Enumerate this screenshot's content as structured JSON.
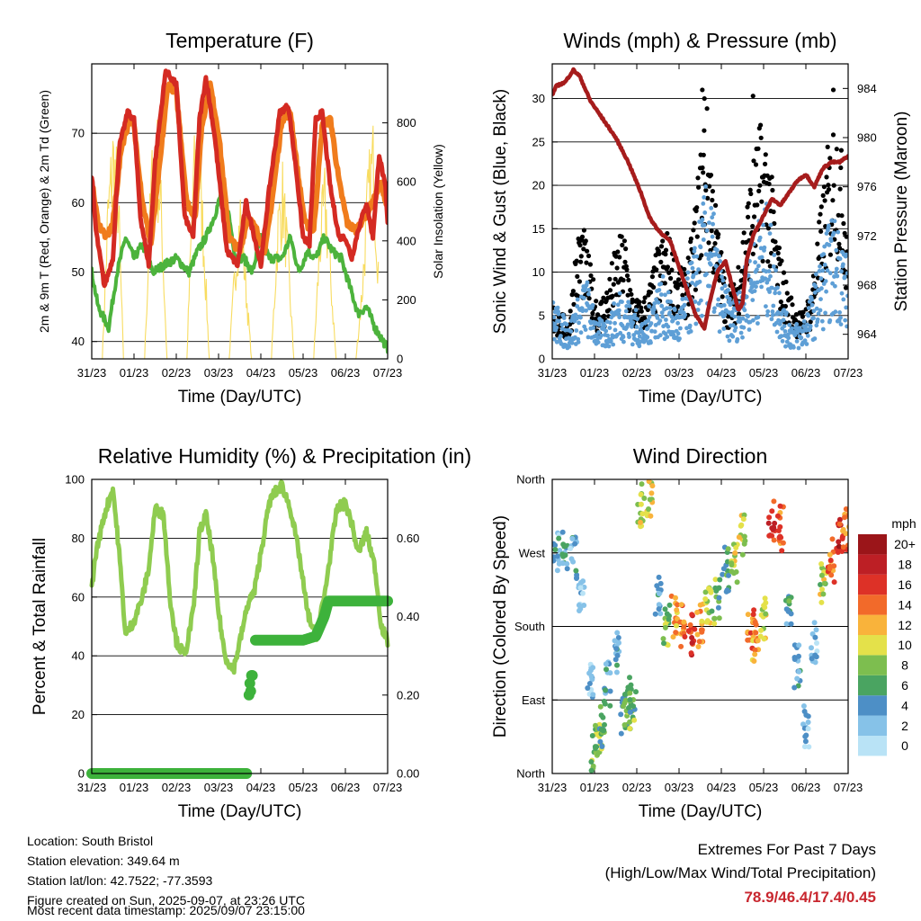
{
  "colors": {
    "temp_2m": "#d42a22",
    "temp_9m": "#f07c1c",
    "dewpoint": "#4cb33c",
    "insolation": "#f8dc60",
    "wind": "#5e9fd6",
    "gust": "#000000",
    "pressure": "#a61c1c",
    "rh": "#8fcc50",
    "precip": "#3db23b",
    "speed_scale": [
      "#b9e3f6",
      "#86c2e8",
      "#4d8fc6",
      "#4aa461",
      "#7dbe4f",
      "#e4e14a",
      "#f9b33b",
      "#f26a2a",
      "#dd3127",
      "#bd1f25",
      "#9b1519"
    ]
  },
  "xticks": [
    "31/23",
    "01/23",
    "02/23",
    "03/23",
    "04/23",
    "05/23",
    "06/23",
    "07/23"
  ],
  "panels": [
    {
      "id": "temperature",
      "title": "Temperature (F)",
      "xlabel": "Time (Day/UTC)",
      "ylabel_left": "2m & 9m T (Red, Orange) & 2m Td (Green)",
      "ylabel_right": "Solar Insolation (Yellow)",
      "left_ticks": [
        "40",
        "50",
        "60",
        "70"
      ],
      "right_ticks": [
        "0",
        "200",
        "400",
        "600",
        "800"
      ]
    },
    {
      "id": "winds",
      "title": "Winds (mph) & Pressure (mb)",
      "xlabel": "Time (Day/UTC)",
      "ylabel_left": "Sonic Wind & Gust (Blue, Black)",
      "ylabel_right": "Station Pressure (Maroon)",
      "left_ticks": [
        "0",
        "5",
        "10",
        "15",
        "20",
        "25",
        "30"
      ],
      "right_ticks": [
        "964",
        "968",
        "972",
        "976",
        "980",
        "984"
      ]
    },
    {
      "id": "humidity",
      "title": "Relative Humidity (%) & Precipitation (in)",
      "xlabel": "Time (Day/UTC)",
      "ylabel_left": "Percent & Total Rainfall",
      "ylabel_right": "",
      "left_ticks": [
        "0",
        "20",
        "40",
        "60",
        "80",
        "100"
      ],
      "right_ticks": [
        "0.00",
        "0.20",
        "0.40",
        "0.60"
      ]
    },
    {
      "id": "direction",
      "title": "Wind Direction",
      "xlabel": "Time (Day/UTC)",
      "ylabel_left": "Direction (Colored By Speed)",
      "ylabel_right": "",
      "left_ticks": [
        "North",
        "East",
        "South",
        "West",
        "North"
      ],
      "right_ticks": []
    }
  ],
  "legend": {
    "title": "mph",
    "labels": [
      "0",
      "2",
      "4",
      "6",
      "8",
      "10",
      "12",
      "14",
      "16",
      "18",
      "20+"
    ]
  },
  "footer": {
    "location": "Location: South Bristol",
    "elevation": "Station elevation: 349.64 m",
    "latlon": "Station lat/lon: 42.7522; -77.3593",
    "created": "Figure created on Sun, 2025-09-07, at 23:26 UTC",
    "recent": "Most recent data timestamp: 2025/09/07 23:15:00"
  },
  "extremes": {
    "title": "Extremes For Past 7 Days",
    "subtitle": "(High/Low/Max Wind/Total Precipitation)",
    "values": "78.9/46.4/17.4/0.45"
  },
  "chart_data": [
    {
      "type": "line",
      "title": "Temperature (F)",
      "x_range_days": [
        0,
        7
      ],
      "ylim": [
        37.5,
        80
      ],
      "y2lim": [
        0,
        1000
      ],
      "series": [
        {
          "name": "2m T (Red)",
          "axis": "left",
          "x": [
            0,
            0.1,
            0.3,
            0.5,
            0.65,
            0.85,
            1.0,
            1.15,
            1.35,
            1.5,
            1.75,
            2.0,
            2.2,
            2.4,
            2.55,
            2.7,
            2.9,
            3.2,
            3.45,
            3.65,
            3.85,
            4.0,
            4.2,
            4.45,
            4.65,
            4.85,
            5.0,
            5.15,
            5.3,
            5.45,
            5.65,
            5.85,
            6.0,
            6.15,
            6.3,
            6.5,
            6.65,
            6.8,
            6.95,
            7.0
          ],
          "y": [
            64,
            56,
            48,
            52,
            68,
            73,
            72,
            58,
            51,
            66,
            79,
            77,
            58,
            55,
            72,
            78,
            70,
            53,
            51,
            60,
            55,
            51,
            62,
            73,
            74,
            64,
            55,
            54,
            72,
            73,
            62,
            55,
            55,
            52,
            56,
            60,
            55,
            67,
            62,
            57
          ]
        },
        {
          "name": "9m T (Orange)",
          "axis": "left",
          "x": [
            0,
            0.15,
            0.35,
            0.5,
            0.7,
            0.9,
            1.0,
            1.2,
            1.4,
            1.6,
            1.8,
            2.0,
            2.25,
            2.45,
            2.6,
            2.8,
            3.0,
            3.25,
            3.5,
            3.7,
            3.9,
            4.1,
            4.3,
            4.5,
            4.7,
            4.9,
            5.05,
            5.25,
            5.45,
            5.65,
            5.85,
            6.05,
            6.25,
            6.45,
            6.65,
            6.85,
            7.0
          ],
          "y": [
            63,
            57,
            55,
            57,
            68,
            72,
            71,
            60,
            54,
            65,
            77,
            76,
            60,
            58,
            71,
            77,
            70,
            55,
            53,
            58,
            56,
            53,
            62,
            72,
            73,
            63,
            57,
            56,
            71,
            72,
            63,
            57,
            56,
            58,
            60,
            63,
            59
          ]
        },
        {
          "name": "2m Td (Green)",
          "axis": "left",
          "x": [
            0,
            0.15,
            0.4,
            0.6,
            0.8,
            1.0,
            1.2,
            1.45,
            1.7,
            2.0,
            2.3,
            2.5,
            2.7,
            2.9,
            3.1,
            3.25,
            3.4,
            3.6,
            3.8,
            4.0,
            4.2,
            4.5,
            4.7,
            4.9,
            5.1,
            5.3,
            5.5,
            5.7,
            5.9,
            6.1,
            6.3,
            6.5,
            6.7,
            6.9,
            7.0
          ],
          "y": [
            50,
            45,
            42,
            50,
            55,
            52,
            54,
            50,
            51,
            52,
            50,
            53,
            55,
            58,
            62,
            58,
            52,
            52,
            50,
            55,
            52,
            52,
            55,
            50,
            53,
            52,
            55,
            53,
            52,
            48,
            44,
            45,
            42,
            40,
            39
          ]
        },
        {
          "name": "Solar Insolation (Yellow)",
          "axis": "right",
          "x": [
            0.25,
            0.38,
            0.5,
            0.62,
            0.75,
            1.25,
            1.4,
            1.52,
            1.65,
            1.78,
            2.25,
            2.4,
            2.52,
            2.65,
            2.78,
            3.25,
            3.4,
            3.52,
            3.65,
            3.78,
            4.25,
            4.4,
            4.52,
            4.65,
            4.78,
            5.25,
            5.4,
            5.52,
            5.65,
            5.78,
            6.25,
            6.4,
            6.52,
            6.65,
            6.78,
            6.88
          ],
          "y": [
            0,
            600,
            850,
            700,
            0,
            0,
            700,
            920,
            600,
            0,
            0,
            750,
            880,
            500,
            0,
            0,
            400,
            620,
            300,
            0,
            0,
            550,
            700,
            400,
            0,
            0,
            500,
            680,
            350,
            0,
            0,
            300,
            650,
            850,
            400,
            0
          ]
        }
      ]
    },
    {
      "type": "line",
      "title": "Winds (mph) & Pressure (mb)",
      "x_range_days": [
        0,
        7
      ],
      "ylim": [
        0,
        34
      ],
      "y2lim": [
        962,
        986
      ],
      "series": [
        {
          "name": "Sonic Wind (Blue)",
          "axis": "left",
          "x": [
            0,
            0.2,
            0.4,
            0.6,
            0.8,
            1.0,
            1.2,
            1.4,
            1.6,
            1.8,
            2.0,
            2.2,
            2.4,
            2.6,
            2.8,
            3.0,
            3.2,
            3.4,
            3.6,
            3.7,
            3.9,
            4.1,
            4.3,
            4.5,
            4.7,
            4.9,
            5.1,
            5.3,
            5.5,
            5.7,
            5.9,
            6.1,
            6.3,
            6.5,
            6.7,
            6.9,
            7.0
          ],
          "y": [
            5,
            4,
            3,
            5,
            7,
            4,
            3,
            4,
            6,
            5,
            4,
            3,
            6,
            7,
            5,
            4,
            7,
            10,
            14,
            15,
            10,
            6,
            5,
            7,
            9,
            12,
            13,
            8,
            4,
            3,
            3,
            5,
            8,
            11,
            12,
            10,
            8
          ]
        },
        {
          "name": "Gust (Black)",
          "axis": "left",
          "x": [
            0,
            0.2,
            0.4,
            0.55,
            0.7,
            0.9,
            1.1,
            1.3,
            1.5,
            1.7,
            1.9,
            2.1,
            2.3,
            2.5,
            2.7,
            2.9,
            3.1,
            3.3,
            3.5,
            3.6,
            3.7,
            3.9,
            4.1,
            4.3,
            4.5,
            4.7,
            4.9,
            5.1,
            5.3,
            5.5,
            5.7,
            5.9,
            6.1,
            6.3,
            6.5,
            6.7,
            6.9,
            7.0
          ],
          "y": [
            6,
            5,
            4,
            12,
            15,
            10,
            6,
            8,
            12,
            14,
            7,
            6,
            8,
            12,
            14,
            11,
            9,
            13,
            22,
            28,
            26,
            15,
            8,
            8,
            14,
            20,
            25,
            24,
            14,
            9,
            6,
            5,
            7,
            14,
            22,
            27,
            20,
            15
          ]
        },
        {
          "name": "Station Pressure (Maroon)",
          "axis": "right",
          "x": [
            0,
            0.1,
            0.3,
            0.5,
            0.65,
            0.9,
            1.2,
            1.5,
            1.8,
            2.1,
            2.3,
            2.5,
            2.8,
            3.0,
            3.2,
            3.4,
            3.6,
            3.75,
            3.9,
            4.1,
            4.25,
            4.4,
            4.5,
            4.6,
            4.75,
            4.9,
            5.05,
            5.2,
            5.4,
            5.6,
            5.8,
            6.0,
            6.2,
            6.4,
            6.6,
            6.8,
            7.0
          ],
          "y": [
            983.5,
            984.2,
            984.5,
            985.5,
            985.0,
            983.0,
            981.5,
            980.0,
            978.0,
            975.5,
            973.5,
            972.5,
            971.5,
            969.5,
            967.5,
            965.5,
            964.5,
            967,
            969,
            970,
            968,
            966,
            966.5,
            970,
            972,
            973,
            974,
            975,
            974.5,
            975.5,
            976.5,
            977,
            976,
            977.5,
            978,
            978,
            978.5
          ]
        }
      ]
    },
    {
      "type": "line",
      "title": "Relative Humidity (%) & Precipitation (in)",
      "x_range_days": [
        0,
        7
      ],
      "ylim": [
        0,
        100
      ],
      "y2lim": [
        0,
        0.75
      ],
      "series": [
        {
          "name": "Relative Humidity",
          "axis": "left",
          "x": [
            0,
            0.1,
            0.3,
            0.5,
            0.65,
            0.8,
            1.0,
            1.2,
            1.35,
            1.5,
            1.7,
            1.85,
            2.0,
            2.2,
            2.4,
            2.55,
            2.7,
            2.85,
            3.0,
            3.15,
            3.35,
            3.55,
            3.7,
            3.85,
            4.0,
            4.2,
            4.3,
            4.5,
            4.7,
            4.9,
            5.1,
            5.3,
            5.5,
            5.65,
            5.8,
            6.0,
            6.15,
            6.3,
            6.5,
            6.7,
            6.85,
            7.0
          ],
          "y": [
            63,
            75,
            88,
            97,
            75,
            47,
            52,
            60,
            70,
            90,
            88,
            60,
            45,
            40,
            55,
            82,
            88,
            75,
            55,
            40,
            35,
            48,
            58,
            62,
            75,
            92,
            95,
            98,
            90,
            75,
            55,
            46,
            60,
            75,
            90,
            92,
            85,
            75,
            82,
            70,
            50,
            45
          ]
        },
        {
          "name": "Total Precipitation",
          "axis": "right",
          "x": [
            0,
            1.0,
            2.0,
            3.0,
            3.7,
            3.72,
            3.75,
            3.8,
            3.82,
            3.85,
            4.0,
            4.5,
            5.0,
            5.3,
            5.5,
            5.6,
            5.75,
            6.0,
            6.5,
            7.0
          ],
          "y": [
            0,
            0,
            0,
            0,
            0,
            0.2,
            0.24,
            0.24,
            0.34,
            0.34,
            0.34,
            0.34,
            0.34,
            0.35,
            0.4,
            0.44,
            0.44,
            0.44,
            0.44,
            0.44
          ]
        }
      ]
    },
    {
      "type": "scatter",
      "title": "Wind Direction",
      "x_range_days": [
        0,
        7
      ],
      "ylim_degrees": [
        0,
        360
      ],
      "series": [
        {
          "name": "Direction (colored by speed, mph)",
          "x": [
            0.1,
            0.3,
            0.5,
            0.7,
            0.9,
            1.0,
            1.1,
            1.2,
            1.3,
            1.5,
            1.7,
            1.8,
            1.9,
            2.1,
            2.3,
            2.5,
            2.7,
            2.9,
            3.1,
            3.3,
            3.5,
            3.7,
            3.9,
            4.1,
            4.3,
            4.5,
            4.7,
            4.8,
            5.0,
            5.2,
            5.4,
            5.6,
            5.8,
            6.0,
            6.2,
            6.4,
            6.6,
            6.8,
            6.95
          ],
          "y": [
            270,
            275,
            265,
            220,
            120,
            30,
            40,
            60,
            110,
            150,
            70,
            80,
            90,
            330,
            340,
            220,
            180,
            190,
            180,
            170,
            180,
            200,
            210,
            250,
            260,
            290,
            180,
            160,
            190,
            310,
            300,
            210,
            130,
            60,
            160,
            230,
            260,
            290,
            300
          ],
          "speed": [
            3,
            4,
            3,
            2,
            2,
            7,
            8,
            6,
            4,
            3,
            6,
            8,
            7,
            9,
            10,
            3,
            8,
            12,
            14,
            16,
            13,
            9,
            7,
            6,
            9,
            10,
            14,
            13,
            9,
            17,
            15,
            5,
            3,
            2,
            3,
            9,
            14,
            17,
            13
          ]
        }
      ]
    }
  ]
}
